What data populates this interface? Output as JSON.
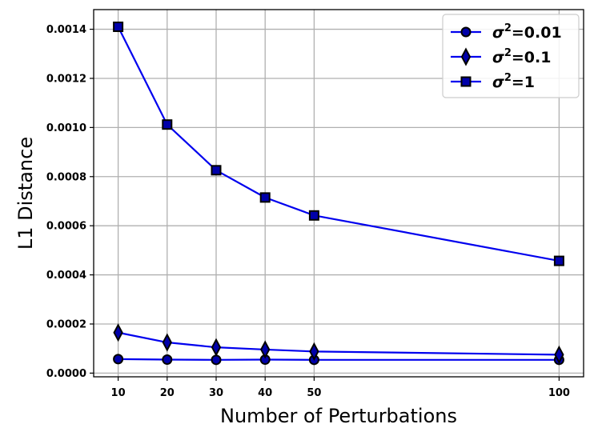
{
  "chart_data": {
    "type": "line",
    "xlabel": "Number of Perturbations",
    "ylabel": "L1 Distance",
    "x": [
      10,
      20,
      30,
      40,
      50,
      100
    ],
    "xticks": [
      "10",
      "20",
      "30",
      "40",
      "50",
      "100"
    ],
    "yticks": [
      "0.0000",
      "0.0002",
      "0.0004",
      "0.0006",
      "0.0008",
      "0.0010",
      "0.0012",
      "0.0014"
    ],
    "ytick_values": [
      0,
      0.0002,
      0.0004,
      0.0006,
      0.0008,
      0.001,
      0.0012,
      0.0014
    ],
    "xlim": [
      5,
      105
    ],
    "ylim": [
      -1.5e-05,
      0.00148
    ],
    "grid": true,
    "legend_position": "top-right",
    "line_color": "#0000ee",
    "marker_fill": "#0000aa",
    "marker_edge": "#000000",
    "series": [
      {
        "name": "σ²=0.01",
        "base": "σ",
        "sup": "2",
        "rest": "=0.01",
        "marker": "circle",
        "values": [
          5.7e-05,
          5.5e-05,
          5.4e-05,
          5.5e-05,
          5.4e-05,
          5.4e-05
        ]
      },
      {
        "name": "σ²=0.1",
        "base": "σ",
        "sup": "2",
        "rest": "=0.1",
        "marker": "diamond",
        "values": [
          0.000165,
          0.000125,
          0.000105,
          9.6e-05,
          8.8e-05,
          7.5e-05
        ]
      },
      {
        "name": "σ²=1",
        "base": "σ",
        "sup": "2",
        "rest": "=1",
        "marker": "square",
        "values": [
          0.00141,
          0.001012,
          0.000826,
          0.000715,
          0.000642,
          0.000457
        ]
      }
    ]
  }
}
